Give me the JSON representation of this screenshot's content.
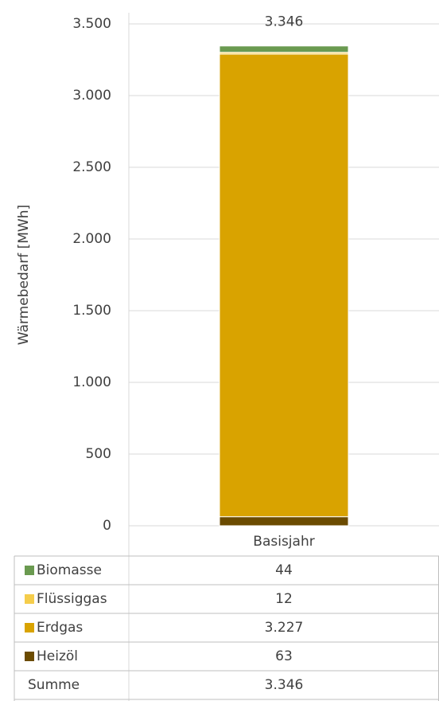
{
  "chart_data": {
    "type": "stacked_bar",
    "y_label": "Wärmebedarf [MWh]",
    "categories": [
      "Basisjahr"
    ],
    "series": [
      {
        "name": "Heizöl",
        "color": "#6b4b00",
        "values": [
          63
        ]
      },
      {
        "name": "Erdgas",
        "color": "#d9a300",
        "values": [
          3227
        ],
        "value_labels": [
          "3.227"
        ]
      },
      {
        "name": "Flüssiggas",
        "color": "#f5cd4b",
        "values": [
          12
        ]
      },
      {
        "name": "Biomasse",
        "color": "#6a9a50",
        "values": [
          44
        ]
      }
    ],
    "total": {
      "name": "Summe",
      "values": [
        3346
      ],
      "value_labels": [
        "3.346"
      ]
    },
    "ylim": [
      0,
      3500
    ],
    "yticks": [
      0,
      500,
      {
        "value": 1000,
        "label": "1.000"
      },
      {
        "value": 1500,
        "label": "1.500"
      },
      {
        "value": 2000,
        "label": "2.000"
      },
      {
        "value": 2500,
        "label": "2.500"
      },
      {
        "value": 3000,
        "label": "3.000"
      },
      {
        "value": 3500,
        "label": "3.500"
      }
    ],
    "grid": true
  }
}
